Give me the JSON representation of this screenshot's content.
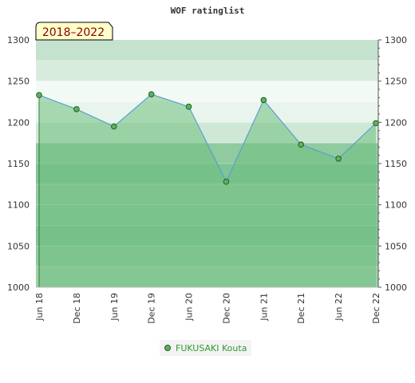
{
  "chart_data": {
    "type": "line",
    "title": "WOF ratinglist",
    "period_label": "2018–2022",
    "categories": [
      "Jun 18",
      "Dec 18",
      "Jun 19",
      "Dec 19",
      "Jun 20",
      "Dec 20",
      "Jun 21",
      "Dec 21",
      "Jun 22",
      "Dec 22"
    ],
    "series": [
      {
        "name": "FUKUSAKI Kouta",
        "values": [
          1233,
          1216,
          1195,
          1234,
          1219,
          1128,
          1227,
          1173,
          1156,
          1199
        ]
      }
    ],
    "ylim": [
      1000,
      1300
    ],
    "y_ticks": [
      1000,
      1050,
      1100,
      1150,
      1200,
      1250,
      1300
    ],
    "y_axis_both_sides": true,
    "grid": true,
    "legend": "bottom-center",
    "colors": {
      "line": "#5a9fd4",
      "marker_fill": "#5fb05f",
      "marker_stroke": "#1f5f1f",
      "area_fill": "#6fbf7f",
      "badge_bg": "#ffffcc",
      "badge_text": "#8b0000",
      "legend_text": "#2e9a2e"
    }
  }
}
